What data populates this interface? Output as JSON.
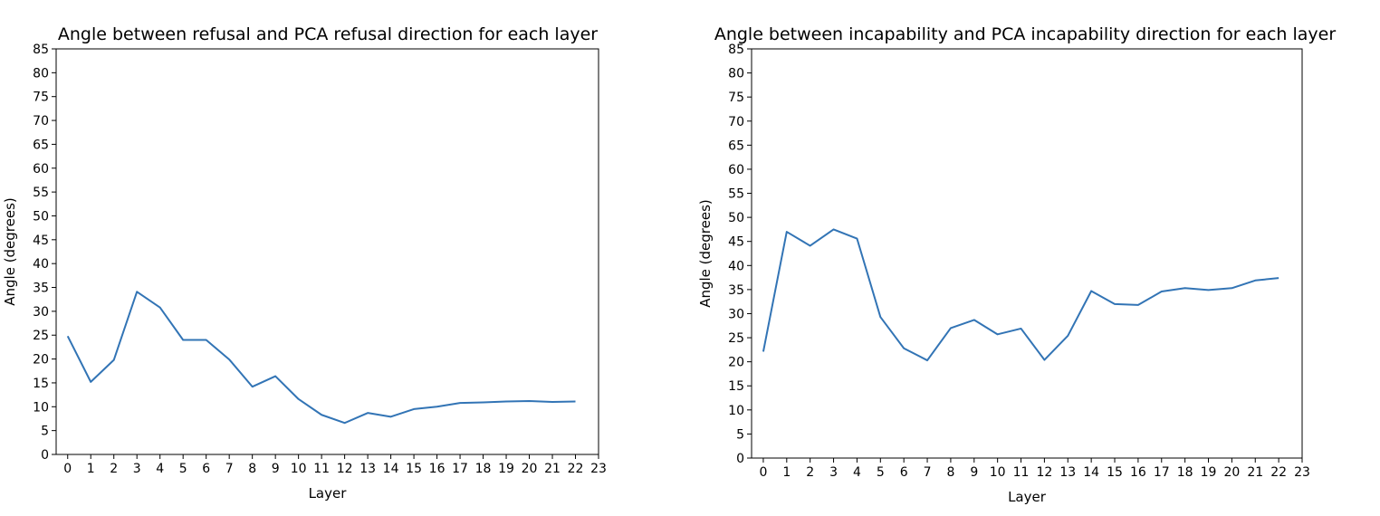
{
  "chart_data": [
    {
      "type": "line",
      "title": "Angle between refusal and PCA refusal direction for each layer",
      "xlabel": "Layer",
      "ylabel": "Angle (degrees)",
      "xlim": [
        -0.5,
        23
      ],
      "ylim": [
        0,
        85
      ],
      "xticks": [
        0,
        1,
        2,
        3,
        4,
        5,
        6,
        7,
        8,
        9,
        10,
        11,
        12,
        13,
        14,
        15,
        16,
        17,
        18,
        19,
        20,
        21,
        22,
        23
      ],
      "yticks": [
        0,
        5,
        10,
        15,
        20,
        25,
        30,
        35,
        40,
        45,
        50,
        55,
        60,
        65,
        70,
        75,
        80,
        85
      ],
      "grid": false,
      "x": [
        0,
        1,
        2,
        3,
        4,
        5,
        6,
        7,
        8,
        9,
        10,
        11,
        12,
        13,
        14,
        15,
        16,
        17,
        18,
        19,
        20,
        21,
        22
      ],
      "series": [
        {
          "values": [
            24.8,
            15.2,
            19.8,
            34.1,
            30.8,
            24.0,
            24.0,
            19.9,
            14.2,
            16.4,
            11.6,
            8.3,
            6.6,
            8.7,
            7.9,
            9.5,
            10.0,
            10.8,
            10.9,
            11.1,
            11.2,
            11.0,
            11.1
          ],
          "color": "#3274b5"
        }
      ]
    },
    {
      "type": "line",
      "title": "Angle between incapability and PCA incapability direction for each layer",
      "xlabel": "Layer",
      "ylabel": "Angle (degrees)",
      "xlim": [
        -0.5,
        23
      ],
      "ylim": [
        0,
        85
      ],
      "xticks": [
        0,
        1,
        2,
        3,
        4,
        5,
        6,
        7,
        8,
        9,
        10,
        11,
        12,
        13,
        14,
        15,
        16,
        17,
        18,
        19,
        20,
        21,
        22,
        23
      ],
      "yticks": [
        0,
        5,
        10,
        15,
        20,
        25,
        30,
        35,
        40,
        45,
        50,
        55,
        60,
        65,
        70,
        75,
        80,
        85
      ],
      "grid": false,
      "x": [
        0,
        1,
        2,
        3,
        4,
        5,
        6,
        7,
        8,
        9,
        10,
        11,
        12,
        13,
        14,
        15,
        16,
        17,
        18,
        19,
        20,
        21,
        22
      ],
      "series": [
        {
          "values": [
            22.1,
            47.0,
            44.1,
            47.5,
            45.6,
            29.3,
            22.8,
            20.3,
            27.0,
            28.7,
            25.7,
            26.9,
            20.4,
            25.4,
            34.7,
            32.0,
            31.8,
            34.6,
            35.3,
            34.9,
            35.3,
            36.9,
            37.4
          ],
          "color": "#3274b5"
        }
      ]
    }
  ]
}
